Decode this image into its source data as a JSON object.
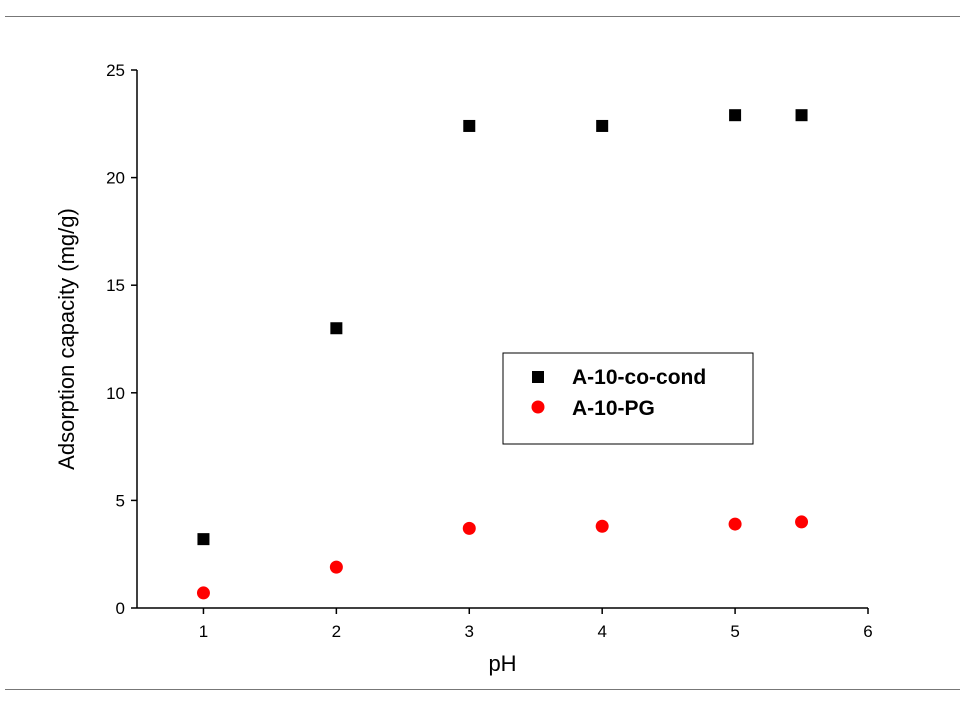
{
  "chart_data": {
    "type": "scatter",
    "xlabel": "pH",
    "ylabel": "Adsorption capacity (mg/g)",
    "xlim": [
      0.5,
      6
    ],
    "ylim": [
      0,
      25
    ],
    "xticks": [
      1,
      2,
      3,
      4,
      5,
      6
    ],
    "yticks": [
      0,
      5,
      10,
      15,
      20,
      25
    ],
    "grid": false,
    "legend_position": "center-right",
    "series": [
      {
        "name": "A-10-co-cond",
        "marker": "square",
        "color": "#000000",
        "x": [
          1,
          2,
          3,
          4,
          5,
          5.5
        ],
        "y": [
          3.2,
          13.0,
          22.4,
          22.4,
          22.9,
          22.9
        ]
      },
      {
        "name": "A-10-PG",
        "marker": "circle",
        "color": "#ff0000",
        "x": [
          1,
          2,
          3,
          4,
          5,
          5.5
        ],
        "y": [
          0.7,
          1.9,
          3.7,
          3.8,
          3.9,
          4.0
        ]
      }
    ]
  }
}
